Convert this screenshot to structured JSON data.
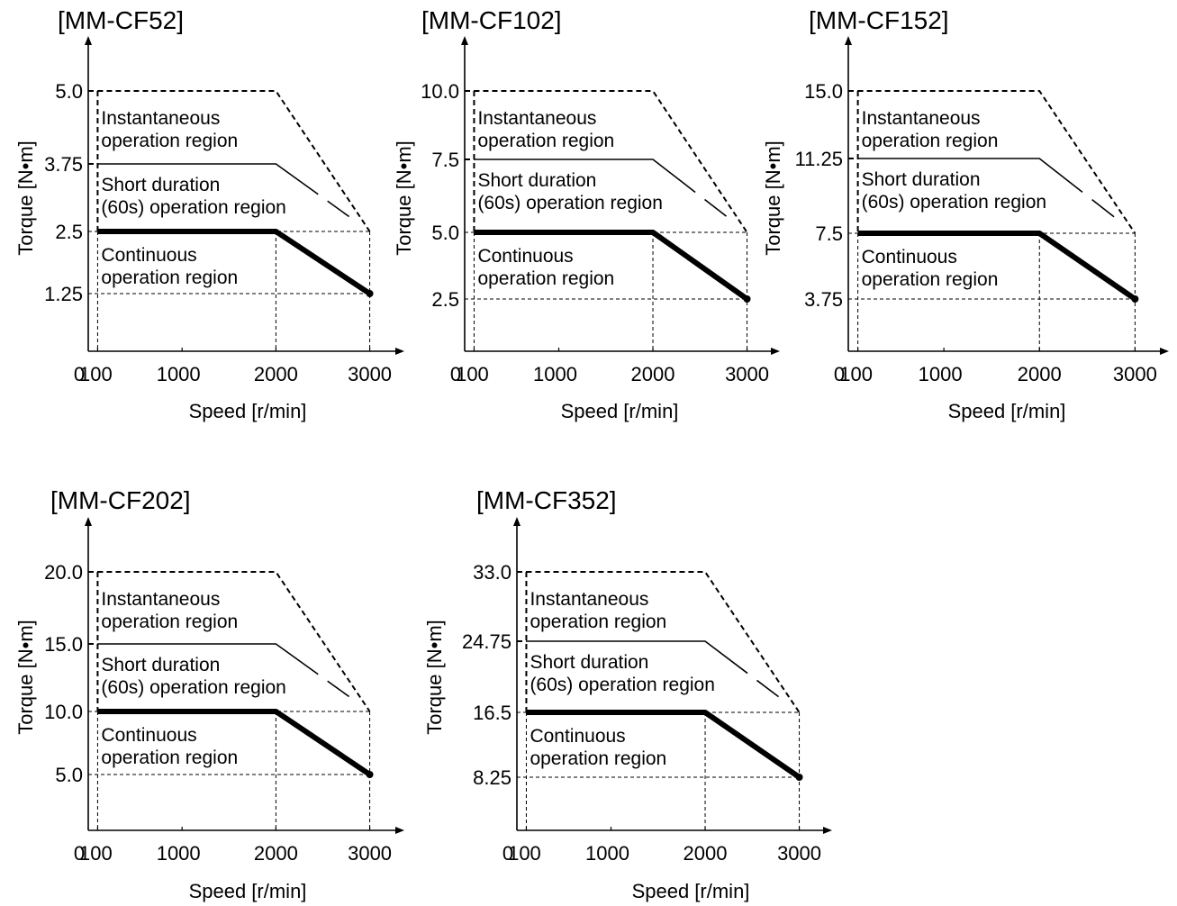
{
  "charts": [
    {
      "title": "[MM-CF52]",
      "ylabel": "Torque [N•m]",
      "xlabel": "Speed [r/min]",
      "x_ticks": [
        "0",
        "100",
        "1000",
        "2000",
        "3000"
      ],
      "y_ticks": [
        "5.0",
        "3.75",
        "2.5",
        "1.25"
      ],
      "regions": [
        "Instantaneous",
        "operation region",
        "Short duration",
        "(60s) operation region",
        "Continuous",
        "operation region"
      ]
    },
    {
      "title": "[MM-CF102]",
      "ylabel": "Torque [N•m]",
      "xlabel": "Speed [r/min]",
      "x_ticks": [
        "0",
        "100",
        "1000",
        "2000",
        "3000"
      ],
      "y_ticks": [
        "10.0",
        "7.5",
        "5.0",
        "2.5"
      ],
      "regions": [
        "Instantaneous",
        "operation region",
        "Short duration",
        "(60s) operation region",
        "Continuous",
        "operation region"
      ]
    },
    {
      "title": "[MM-CF152]",
      "ylabel": "Torque [N•m]",
      "xlabel": "Speed [r/min]",
      "x_ticks": [
        "0",
        "100",
        "1000",
        "2000",
        "3000"
      ],
      "y_ticks": [
        "15.0",
        "11.25",
        "7.5",
        "3.75"
      ],
      "regions": [
        "Instantaneous",
        "operation region",
        "Short duration",
        "(60s) operation region",
        "Continuous",
        "operation region"
      ]
    },
    {
      "title": "[MM-CF202]",
      "ylabel": "Torque [N•m]",
      "xlabel": "Speed [r/min]",
      "x_ticks": [
        "0",
        "100",
        "1000",
        "2000",
        "3000"
      ],
      "y_ticks": [
        "20.0",
        "15.0",
        "10.0",
        "5.0"
      ],
      "regions": [
        "Instantaneous",
        "operation region",
        "Short duration",
        "(60s) operation region",
        "Continuous",
        "operation region"
      ]
    },
    {
      "title": "[MM-CF352]",
      "ylabel": "Torque [N•m]",
      "xlabel": "Speed [r/min]",
      "x_ticks": [
        "0",
        "100",
        "1000",
        "2000",
        "3000"
      ],
      "y_ticks": [
        "33.0",
        "24.75",
        "16.5",
        "8.25"
      ],
      "regions": [
        "Instantaneous",
        "operation region",
        "Short duration",
        "(60s) operation region",
        "Continuous",
        "operation region"
      ]
    }
  ],
  "chart_data": [
    {
      "type": "line",
      "title": "[MM-CF52]",
      "xlabel": "Speed [r/min]",
      "ylabel": "Torque [N•m]",
      "xlim": [
        0,
        3000
      ],
      "series": [
        {
          "style": "dashed",
          "points": [
            [
              100,
              5.0
            ],
            [
              2000,
              5.0
            ],
            [
              3000,
              2.5
            ]
          ]
        },
        {
          "style": "solid",
          "points": [
            [
              100,
              3.75
            ],
            [
              2000,
              3.75
            ],
            [
              3000,
              2.5
            ]
          ]
        },
        {
          "style": "bold",
          "points": [
            [
              100,
              2.5
            ],
            [
              2000,
              2.5
            ],
            [
              3000,
              1.25
            ]
          ]
        }
      ]
    },
    {
      "type": "line",
      "title": "[MM-CF102]",
      "xlabel": "Speed [r/min]",
      "ylabel": "Torque [N•m]",
      "xlim": [
        0,
        3000
      ],
      "series": [
        {
          "style": "dashed",
          "points": [
            [
              100,
              10.0
            ],
            [
              2000,
              10.0
            ],
            [
              3000,
              5.0
            ]
          ]
        },
        {
          "style": "solid",
          "points": [
            [
              100,
              7.5
            ],
            [
              2000,
              7.5
            ],
            [
              3000,
              5.0
            ]
          ]
        },
        {
          "style": "bold",
          "points": [
            [
              100,
              5.0
            ],
            [
              2000,
              5.0
            ],
            [
              3000,
              2.5
            ]
          ]
        }
      ]
    },
    {
      "type": "line",
      "title": "[MM-CF152]",
      "xlabel": "Speed [r/min]",
      "ylabel": "Torque [N•m]",
      "xlim": [
        0,
        3000
      ],
      "series": [
        {
          "style": "dashed",
          "points": [
            [
              100,
              15.0
            ],
            [
              2000,
              15.0
            ],
            [
              3000,
              7.5
            ]
          ]
        },
        {
          "style": "solid",
          "points": [
            [
              100,
              11.25
            ],
            [
              2000,
              11.25
            ],
            [
              3000,
              7.5
            ]
          ]
        },
        {
          "style": "bold",
          "points": [
            [
              100,
              7.5
            ],
            [
              2000,
              7.5
            ],
            [
              3000,
              3.75
            ]
          ]
        }
      ]
    },
    {
      "type": "line",
      "title": "[MM-CF202]",
      "xlabel": "Speed [r/min]",
      "ylabel": "Torque [N•m]",
      "xlim": [
        0,
        3000
      ],
      "series": [
        {
          "style": "dashed",
          "points": [
            [
              100,
              20.0
            ],
            [
              2000,
              20.0
            ],
            [
              3000,
              10.0
            ]
          ]
        },
        {
          "style": "solid",
          "points": [
            [
              100,
              15.0
            ],
            [
              2000,
              15.0
            ],
            [
              3000,
              10.0
            ]
          ]
        },
        {
          "style": "bold",
          "points": [
            [
              100,
              10.0
            ],
            [
              2000,
              10.0
            ],
            [
              3000,
              5.0
            ]
          ]
        }
      ]
    },
    {
      "type": "line",
      "title": "[MM-CF352]",
      "xlabel": "Speed [r/min]",
      "ylabel": "Torque [N•m]",
      "xlim": [
        0,
        3000
      ],
      "series": [
        {
          "style": "dashed",
          "points": [
            [
              100,
              33.0
            ],
            [
              2000,
              33.0
            ],
            [
              3000,
              16.5
            ]
          ]
        },
        {
          "style": "solid",
          "points": [
            [
              100,
              24.75
            ],
            [
              2000,
              24.75
            ],
            [
              3000,
              16.5
            ]
          ]
        },
        {
          "style": "bold",
          "points": [
            [
              100,
              16.5
            ],
            [
              2000,
              16.5
            ],
            [
              3000,
              8.25
            ]
          ]
        }
      ]
    }
  ]
}
